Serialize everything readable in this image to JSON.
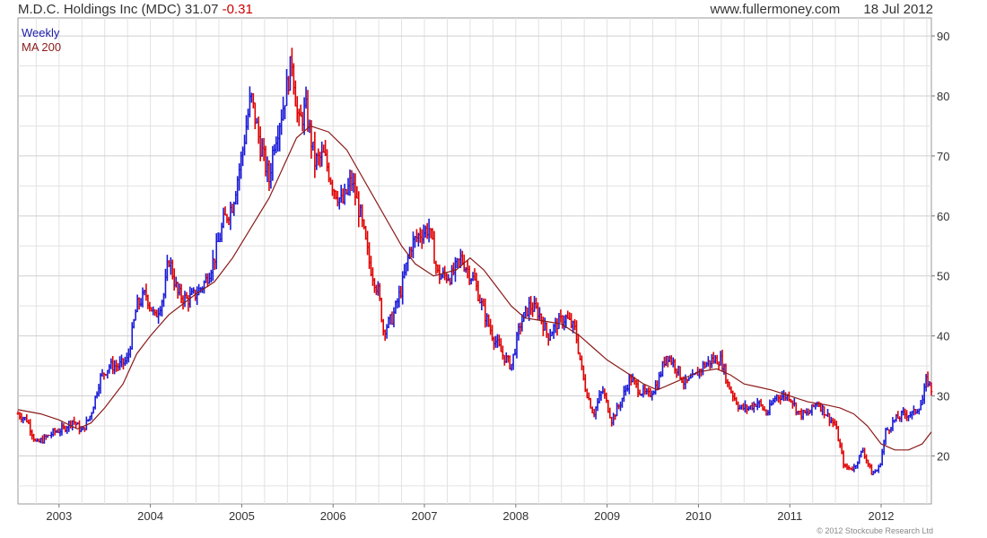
{
  "header": {
    "company": "M.D.C. Holdings Inc (MDC)",
    "price": "31.07",
    "change": "-0.31",
    "site": "www.fullermoney.com",
    "date": "18 Jul 2012"
  },
  "copyright": "© 2012 Stockcube Research Ltd",
  "colors": {
    "up": "#1a1ad8",
    "down": "#e00000",
    "ma": "#8b1a1a",
    "grid": "#e2e2e2"
  },
  "chart_data": {
    "type": "line",
    "chart_style": "weekly OHLC bars with moving average overlay",
    "x_axis": {
      "ticks": [
        "2003",
        "2004",
        "2005",
        "2006",
        "2007",
        "2008",
        "2009",
        "2010",
        "2011",
        "2012"
      ],
      "range": [
        2002.55,
        2012.55
      ]
    },
    "y_axis": {
      "ticks": [
        "20",
        "30",
        "40",
        "50",
        "60",
        "70",
        "80",
        "90"
      ],
      "range": [
        12,
        93
      ],
      "position": "right"
    },
    "grid": true,
    "legend": [
      "Weekly",
      "MA 200"
    ],
    "legend_position": "top-left",
    "series": [
      {
        "name": "Weekly",
        "points": [
          [
            2002.55,
            27
          ],
          [
            2002.65,
            26
          ],
          [
            2002.75,
            22
          ],
          [
            2002.85,
            23
          ],
          [
            2002.95,
            24
          ],
          [
            2003.05,
            24.5
          ],
          [
            2003.15,
            26
          ],
          [
            2003.25,
            24
          ],
          [
            2003.35,
            27
          ],
          [
            2003.45,
            33
          ],
          [
            2003.55,
            35
          ],
          [
            2003.65,
            35
          ],
          [
            2003.75,
            36
          ],
          [
            2003.85,
            45
          ],
          [
            2003.95,
            47
          ],
          [
            2004.05,
            43
          ],
          [
            2004.15,
            47
          ],
          [
            2004.2,
            53
          ],
          [
            2004.3,
            47
          ],
          [
            2004.4,
            46
          ],
          [
            2004.5,
            47
          ],
          [
            2004.6,
            49
          ],
          [
            2004.7,
            53
          ],
          [
            2004.8,
            59
          ],
          [
            2004.9,
            62
          ],
          [
            2005.0,
            70
          ],
          [
            2005.1,
            80
          ],
          [
            2005.2,
            72
          ],
          [
            2005.3,
            66
          ],
          [
            2005.35,
            72
          ],
          [
            2005.45,
            78
          ],
          [
            2005.55,
            86
          ],
          [
            2005.62,
            75
          ],
          [
            2005.7,
            78
          ],
          [
            2005.8,
            69
          ],
          [
            2005.9,
            70
          ],
          [
            2006.0,
            65
          ],
          [
            2006.1,
            62
          ],
          [
            2006.2,
            66
          ],
          [
            2006.3,
            60
          ],
          [
            2006.4,
            52
          ],
          [
            2006.5,
            47
          ],
          [
            2006.55,
            41
          ],
          [
            2006.65,
            43
          ],
          [
            2006.75,
            48
          ],
          [
            2006.85,
            55
          ],
          [
            2006.95,
            57
          ],
          [
            2007.05,
            58
          ],
          [
            2007.15,
            50
          ],
          [
            2007.3,
            50
          ],
          [
            2007.4,
            53
          ],
          [
            2007.55,
            49
          ],
          [
            2007.65,
            44
          ],
          [
            2007.75,
            40
          ],
          [
            2007.85,
            37
          ],
          [
            2007.95,
            35
          ],
          [
            2008.05,
            42
          ],
          [
            2008.15,
            45
          ],
          [
            2008.25,
            44
          ],
          [
            2008.35,
            40
          ],
          [
            2008.45,
            42
          ],
          [
            2008.55,
            43
          ],
          [
            2008.65,
            41
          ],
          [
            2008.75,
            32
          ],
          [
            2008.85,
            27
          ],
          [
            2008.95,
            31
          ],
          [
            2009.05,
            26
          ],
          [
            2009.15,
            29
          ],
          [
            2009.25,
            33
          ],
          [
            2009.35,
            31
          ],
          [
            2009.45,
            30
          ],
          [
            2009.55,
            32
          ],
          [
            2009.65,
            37
          ],
          [
            2009.75,
            35
          ],
          [
            2009.85,
            32
          ],
          [
            2009.95,
            33
          ],
          [
            2010.05,
            35
          ],
          [
            2010.15,
            36
          ],
          [
            2010.25,
            36
          ],
          [
            2010.32,
            32
          ],
          [
            2010.45,
            28
          ],
          [
            2010.55,
            28
          ],
          [
            2010.65,
            29
          ],
          [
            2010.75,
            27
          ],
          [
            2010.85,
            30
          ],
          [
            2011.0,
            30
          ],
          [
            2011.1,
            27
          ],
          [
            2011.2,
            27
          ],
          [
            2011.3,
            29
          ],
          [
            2011.4,
            27
          ],
          [
            2011.5,
            25
          ],
          [
            2011.6,
            18
          ],
          [
            2011.7,
            18
          ],
          [
            2011.8,
            21
          ],
          [
            2011.9,
            17
          ],
          [
            2011.98,
            18
          ],
          [
            2012.05,
            24
          ],
          [
            2012.15,
            26
          ],
          [
            2012.25,
            27
          ],
          [
            2012.35,
            27
          ],
          [
            2012.45,
            29
          ],
          [
            2012.5,
            33
          ],
          [
            2012.55,
            31
          ]
        ]
      },
      {
        "name": "MA 200",
        "points": [
          [
            2002.55,
            27.7
          ],
          [
            2002.8,
            27
          ],
          [
            2003.0,
            26
          ],
          [
            2003.2,
            24.5
          ],
          [
            2003.35,
            25.5
          ],
          [
            2003.5,
            28
          ],
          [
            2003.7,
            32
          ],
          [
            2003.85,
            37
          ],
          [
            2004.0,
            40
          ],
          [
            2004.2,
            43.5
          ],
          [
            2004.5,
            47
          ],
          [
            2004.7,
            49
          ],
          [
            2004.9,
            53
          ],
          [
            2005.1,
            58
          ],
          [
            2005.3,
            63
          ],
          [
            2005.45,
            68
          ],
          [
            2005.6,
            73
          ],
          [
            2005.75,
            75
          ],
          [
            2005.95,
            74
          ],
          [
            2006.15,
            71
          ],
          [
            2006.3,
            67
          ],
          [
            2006.45,
            63
          ],
          [
            2006.6,
            59
          ],
          [
            2006.75,
            55
          ],
          [
            2006.9,
            52
          ],
          [
            2007.1,
            50
          ],
          [
            2007.35,
            51
          ],
          [
            2007.5,
            53
          ],
          [
            2007.65,
            51
          ],
          [
            2007.8,
            48
          ],
          [
            2007.95,
            45
          ],
          [
            2008.1,
            43
          ],
          [
            2008.3,
            42.5
          ],
          [
            2008.5,
            42
          ],
          [
            2008.7,
            40
          ],
          [
            2008.85,
            38
          ],
          [
            2009.0,
            36
          ],
          [
            2009.2,
            34
          ],
          [
            2009.4,
            32
          ],
          [
            2009.55,
            31
          ],
          [
            2009.7,
            32
          ],
          [
            2009.85,
            33
          ],
          [
            2010.0,
            34
          ],
          [
            2010.2,
            34.5
          ],
          [
            2010.35,
            33.5
          ],
          [
            2010.5,
            32
          ],
          [
            2010.65,
            31.5
          ],
          [
            2010.8,
            31
          ],
          [
            2011.0,
            30
          ],
          [
            2011.2,
            29
          ],
          [
            2011.4,
            28.5
          ],
          [
            2011.55,
            28
          ],
          [
            2011.7,
            27
          ],
          [
            2011.85,
            25
          ],
          [
            2012.0,
            22
          ],
          [
            2012.15,
            21
          ],
          [
            2012.3,
            21
          ],
          [
            2012.45,
            22
          ],
          [
            2012.55,
            24
          ]
        ]
      }
    ]
  }
}
